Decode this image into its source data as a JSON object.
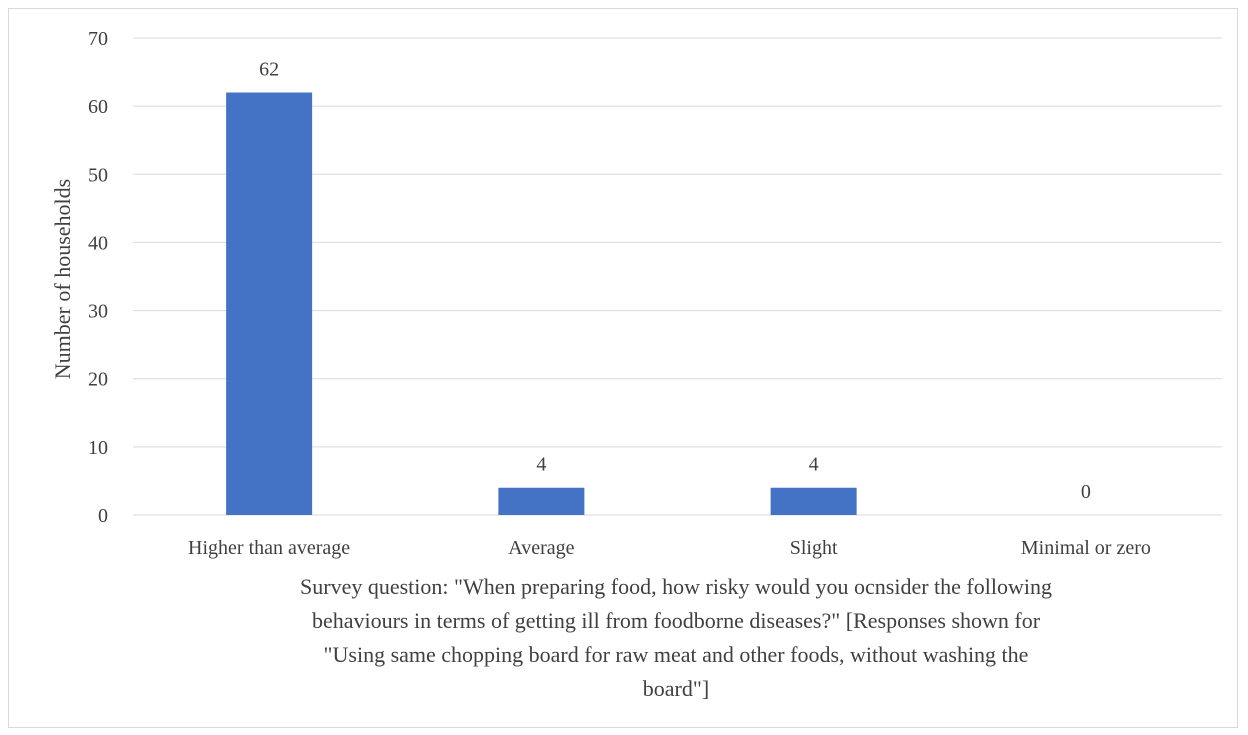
{
  "chart_data": {
    "type": "bar",
    "categories": [
      "Higher than average",
      "Average",
      "Slight",
      "Minimal or zero"
    ],
    "values": [
      62,
      4,
      4,
      0
    ],
    "data_labels": [
      "62",
      "4",
      "4",
      "0"
    ],
    "ylabel": "Number of households",
    "xlabel_lines": [
      "Survey question: \"When preparing food, how risky would you ocnsider the following",
      "behaviours in terms of getting ill from foodborne diseases?\" [Responses shown for",
      "\"Using same chopping board for raw meat and other foods, without washing the",
      "board\"]"
    ],
    "ylim": [
      0,
      70
    ],
    "yticks": [
      0,
      10,
      20,
      30,
      40,
      50,
      60,
      70
    ],
    "grid": true,
    "legend": "none",
    "colors": {
      "bar": "#4472C4",
      "grid": "#d9d9d9",
      "text": "#404040",
      "border": "#d9d9d9"
    }
  }
}
